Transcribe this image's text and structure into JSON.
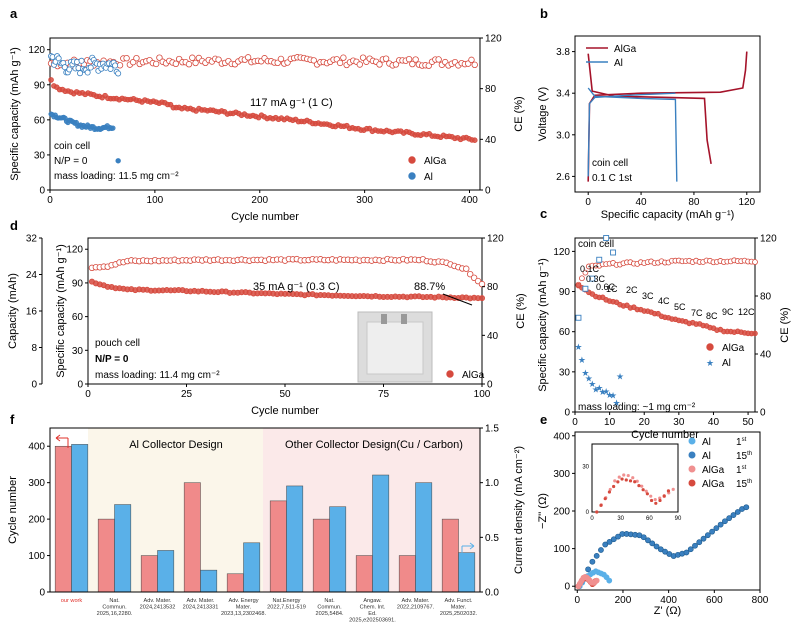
{
  "colors": {
    "red": "#d64a3e",
    "blue": "#3a80c0",
    "red_bar": "#f08a8a",
    "blue_bar": "#5ab0e8",
    "bg_left": "#fbf6ea",
    "bg_right": "#fbe9e9",
    "red_line": "#a5132a",
    "blue_line": "#3a80c0"
  },
  "chart_data": [
    {
      "panel": "a",
      "type": "scatter",
      "xlabel": "Cycle number",
      "ylabel": "Specific capacity (mAh g⁻¹)",
      "y2label": "CE (%)",
      "xlim": [
        0,
        410
      ],
      "ylim": [
        0,
        130
      ],
      "y2lim": [
        0,
        120
      ],
      "xticks": [
        "0",
        "100",
        "200",
        "300",
        "400"
      ],
      "yticks": [
        "0",
        "30",
        "60",
        "90",
        "120"
      ],
      "y2ticks": [
        "0",
        "40",
        "80",
        "120"
      ],
      "annotations": [
        "117 mA g⁻¹ (1 C)",
        "coin cell",
        "N/P = 0",
        "mass loading: 11.5 mg cm⁻²"
      ],
      "legend": [
        "AlGa",
        "Al"
      ],
      "series": [
        {
          "name": "AlGa",
          "kind": "capacity",
          "axis": "left",
          "points": [
            [
              1,
              95
            ],
            [
              5,
              88
            ],
            [
              20,
              84
            ],
            [
              50,
              80
            ],
            [
              90,
              76
            ],
            [
              115,
              73
            ],
            [
              116,
              70
            ],
            [
              150,
              68
            ],
            [
              200,
              63
            ],
            [
              250,
              58
            ],
            [
              300,
              52
            ],
            [
              350,
              48
            ],
            [
              405,
              43
            ]
          ]
        },
        {
          "name": "AlGa",
          "kind": "CE",
          "axis": "right",
          "points": [
            [
              1,
              100
            ],
            [
              50,
              101
            ],
            [
              150,
              102
            ],
            [
              250,
              102
            ],
            [
              350,
              101
            ],
            [
              405,
              101
            ]
          ]
        },
        {
          "name": "Al",
          "kind": "capacity",
          "axis": "left",
          "points": [
            [
              1,
              65
            ],
            [
              10,
              62
            ],
            [
              20,
              58
            ],
            [
              30,
              55
            ],
            [
              45,
              53
            ],
            [
              60,
              54
            ],
            [
              65,
              25
            ]
          ]
        },
        {
          "name": "Al",
          "kind": "CE",
          "axis": "right",
          "points": [
            [
              1,
              105
            ],
            [
              10,
              100
            ],
            [
              20,
              96
            ],
            [
              35,
              98
            ],
            [
              50,
              100
            ],
            [
              65,
              98
            ]
          ]
        }
      ]
    },
    {
      "panel": "b",
      "type": "line",
      "xlabel": "Specific capacity (mAh g⁻¹)",
      "ylabel": "Voltage (V)",
      "xlim": [
        -10,
        130
      ],
      "ylim": [
        2.45,
        3.95
      ],
      "xticks": [
        "0",
        "40",
        "80",
        "120"
      ],
      "yticks": [
        "2.6",
        "3.0",
        "3.4",
        "3.8"
      ],
      "annotations": [
        "coin cell",
        "0.1 C 1st"
      ],
      "legend": [
        "AlGa",
        "Al"
      ],
      "series": [
        {
          "name": "AlGa",
          "kind": "discharge",
          "points": [
            [
              0,
              3.78
            ],
            [
              3,
              3.42
            ],
            [
              20,
              3.37
            ],
            [
              60,
              3.36
            ],
            [
              88,
              3.35
            ],
            [
              90,
              2.95
            ],
            [
              93,
              2.72
            ]
          ]
        },
        {
          "name": "AlGa",
          "kind": "charge",
          "points": [
            [
              0,
              2.55
            ],
            [
              1,
              3.3
            ],
            [
              5,
              3.38
            ],
            [
              40,
              3.4
            ],
            [
              100,
              3.41
            ],
            [
              117,
              3.45
            ],
            [
              119,
              3.62
            ],
            [
              120,
              3.8
            ]
          ]
        },
        {
          "name": "Al",
          "kind": "discharge",
          "points": [
            [
              0,
              3.45
            ],
            [
              5,
              3.37
            ],
            [
              40,
              3.35
            ],
            [
              66,
              3.34
            ],
            [
              67,
              2.55
            ]
          ]
        },
        {
          "name": "Al",
          "kind": "charge",
          "points": [
            [
              0,
              2.6
            ],
            [
              1,
              3.3
            ],
            [
              5,
              3.36
            ],
            [
              30,
              3.38
            ],
            [
              66,
              3.4
            ]
          ]
        }
      ]
    },
    {
      "panel": "c",
      "type": "scatter",
      "xlabel": "Cycle number",
      "ylabel": "Specific capacity (mAh g⁻¹)",
      "y2label": "CE (%)",
      "xlim": [
        0,
        52
      ],
      "ylim": [
        0,
        130
      ],
      "y2lim": [
        0,
        120
      ],
      "xticks": [
        "0",
        "10",
        "20",
        "30",
        "40",
        "50"
      ],
      "yticks": [
        "0",
        "30",
        "60",
        "90",
        "120"
      ],
      "y2ticks": [
        "0",
        "40",
        "80",
        "120"
      ],
      "rate_labels": [
        "0.1C",
        "0.3C",
        "0.6C",
        "1C",
        "2C",
        "3C",
        "4C",
        "5C",
        "7C",
        "8C",
        "9C",
        "12C"
      ],
      "annotations": [
        "coin cell",
        "mass loading: ~1 mg cm⁻²"
      ],
      "legend": [
        "AlGa",
        "Al"
      ],
      "series": [
        {
          "name": "AlGa",
          "kind": "capacity",
          "points": [
            [
              1,
              95
            ],
            [
              5,
              88
            ],
            [
              10,
              83
            ],
            [
              15,
              79
            ],
            [
              20,
              76
            ],
            [
              25,
              72
            ],
            [
              30,
              68
            ],
            [
              35,
              66
            ],
            [
              40,
              62
            ],
            [
              45,
              60
            ],
            [
              52,
              59
            ]
          ]
        },
        {
          "name": "AlGa",
          "kind": "CE",
          "points": [
            [
              1,
              88
            ],
            [
              4,
              100
            ],
            [
              10,
              102
            ],
            [
              20,
              103
            ],
            [
              30,
              104
            ],
            [
              40,
              104
            ],
            [
              52,
              104
            ]
          ]
        },
        {
          "name": "Al",
          "kind": "capacity",
          "points": [
            [
              1,
              48
            ],
            [
              2,
              38
            ],
            [
              3,
              28
            ],
            [
              5,
              20
            ],
            [
              8,
              15
            ],
            [
              11,
              12
            ],
            [
              12,
              8
            ],
            [
              13,
              25
            ]
          ]
        },
        {
          "name": "Al",
          "kind": "CE",
          "points": [
            [
              1,
              65
            ],
            [
              3,
              85
            ],
            [
              5,
              92
            ],
            [
              7,
              105
            ],
            [
              9,
              120
            ],
            [
              11,
              110
            ]
          ]
        }
      ]
    },
    {
      "panel": "d",
      "type": "scatter",
      "xlabel": "Cycle number",
      "ylabel": "Specific capacity (mAh g⁻¹)",
      "y2label": "CE (%)",
      "y3label": "Capacity (mAh)",
      "xlim": [
        0,
        100
      ],
      "ylim": [
        0,
        130
      ],
      "y2lim": [
        0,
        120
      ],
      "y3lim": [
        0,
        32
      ],
      "xticks": [
        "0",
        "25",
        "50",
        "75",
        "100"
      ],
      "yticks": [
        "0",
        "30",
        "60",
        "90",
        "120"
      ],
      "y2ticks": [
        "0",
        "40",
        "80",
        "120"
      ],
      "y3ticks": [
        "0",
        "8",
        "16",
        "24",
        "32"
      ],
      "annotations": [
        "35 mA g⁻¹ (0.3 C)",
        "88.7%",
        "pouch cell",
        "N/P = 0",
        "mass loading: 11.4 mg cm⁻²"
      ],
      "legend": [
        "AlGa"
      ],
      "series": [
        {
          "name": "AlGa",
          "kind": "capacity",
          "points": [
            [
              1,
              91
            ],
            [
              5,
              87
            ],
            [
              10,
              84
            ],
            [
              25,
              83
            ],
            [
              50,
              80
            ],
            [
              75,
              78
            ],
            [
              95,
              77
            ],
            [
              100,
              76
            ]
          ]
        },
        {
          "name": "AlGa",
          "kind": "CE",
          "points": [
            [
              1,
              96
            ],
            [
              5,
              97
            ],
            [
              10,
              101
            ],
            [
              30,
              102
            ],
            [
              60,
              102
            ],
            [
              85,
              102
            ],
            [
              92,
              99
            ],
            [
              96,
              94
            ],
            [
              100,
              82
            ]
          ]
        }
      ]
    },
    {
      "panel": "e",
      "type": "scatter",
      "xlabel": "Z' (Ω)",
      "ylabel": "−Z'' (Ω)",
      "xlim": [
        -10,
        800
      ],
      "ylim": [
        -10,
        410
      ],
      "xticks": [
        "0",
        "200",
        "400",
        "600",
        "800"
      ],
      "yticks": [
        "0",
        "100",
        "200",
        "300",
        "400"
      ],
      "inset": {
        "xticks": [
          "0",
          "30",
          "60",
          "90"
        ],
        "yticks": [
          "0",
          "30"
        ],
        "xlim": [
          0,
          90
        ],
        "ylim": [
          0,
          45
        ]
      },
      "legend": [
        {
          "name": "Al",
          "cycle": "1",
          "sup": "st"
        },
        {
          "name": "Al",
          "cycle": "15",
          "sup": "th"
        },
        {
          "name": "AlGa",
          "cycle": "1",
          "sup": "st"
        },
        {
          "name": "AlGa",
          "cycle": "15",
          "sup": "th"
        }
      ],
      "series": [
        {
          "name": "Al 1st",
          "points": [
            [
              10,
              0
            ],
            [
              40,
              25
            ],
            [
              80,
              40
            ],
            [
              120,
              30
            ],
            [
              140,
              15
            ]
          ]
        },
        {
          "name": "Al 15th",
          "points": [
            [
              10,
              0
            ],
            [
              60,
              60
            ],
            [
              120,
              110
            ],
            [
              200,
              140
            ],
            [
              280,
              135
            ],
            [
              360,
              100
            ],
            [
              420,
              80
            ],
            [
              480,
              90
            ],
            [
              560,
              130
            ],
            [
              640,
              170
            ],
            [
              720,
              205
            ],
            [
              740,
              210
            ]
          ]
        },
        {
          "name": "AlGa 1st",
          "points": [
            [
              5,
              0
            ],
            [
              15,
              10
            ],
            [
              25,
              22
            ],
            [
              35,
              25
            ],
            [
              45,
              22
            ],
            [
              55,
              15
            ],
            [
              65,
              8
            ],
            [
              75,
              10
            ],
            [
              85,
              15
            ]
          ]
        },
        {
          "name": "AlGa 15th",
          "points": [
            [
              5,
              0
            ],
            [
              20,
              15
            ],
            [
              30,
              22
            ],
            [
              45,
              20
            ],
            [
              58,
              12
            ],
            [
              65,
              5
            ],
            [
              72,
              8
            ],
            [
              80,
              14
            ]
          ]
        }
      ]
    },
    {
      "panel": "f",
      "type": "bar",
      "ylabel": "Cycle number",
      "y2label": "Current density (mA cm⁻²)",
      "ylim": [
        0,
        450
      ],
      "y2lim": [
        0,
        1.5
      ],
      "yticks": [
        "0",
        "100",
        "200",
        "300",
        "400"
      ],
      "y2ticks": [
        "0.0",
        "0.5",
        "1.0",
        "1.5"
      ],
      "section_titles": [
        "Al Collector Design",
        "Other Collector Design(Cu / Carbon)"
      ],
      "categories": [
        "our work",
        "Nat. Commun. 2025,16,2280.",
        "Adv. Mater. 2024,2413532",
        "Adv. Mater. 2024,2413331",
        "Adv. Energy Mater. 2023,13,2302468.",
        "Nat.Energy 2022,7,511-519",
        "Nat. Commun. 2025,5484.",
        "Angaw. Chem. Int. Ed. 2025,e202503691.",
        "Adv. Mater. 2022,2109767.",
        "Adv. Funct. Mater. 2025,2502032."
      ],
      "series": [
        {
          "name": "Cycle number",
          "axis": "left",
          "values": [
            400,
            200,
            100,
            300,
            50,
            250,
            200,
            100,
            100,
            200
          ]
        },
        {
          "name": "Current density",
          "axis": "right",
          "values": [
            1.35,
            0.8,
            0.38,
            0.2,
            0.45,
            0.97,
            0.78,
            1.07,
            1.0,
            0.36
          ]
        }
      ]
    }
  ]
}
